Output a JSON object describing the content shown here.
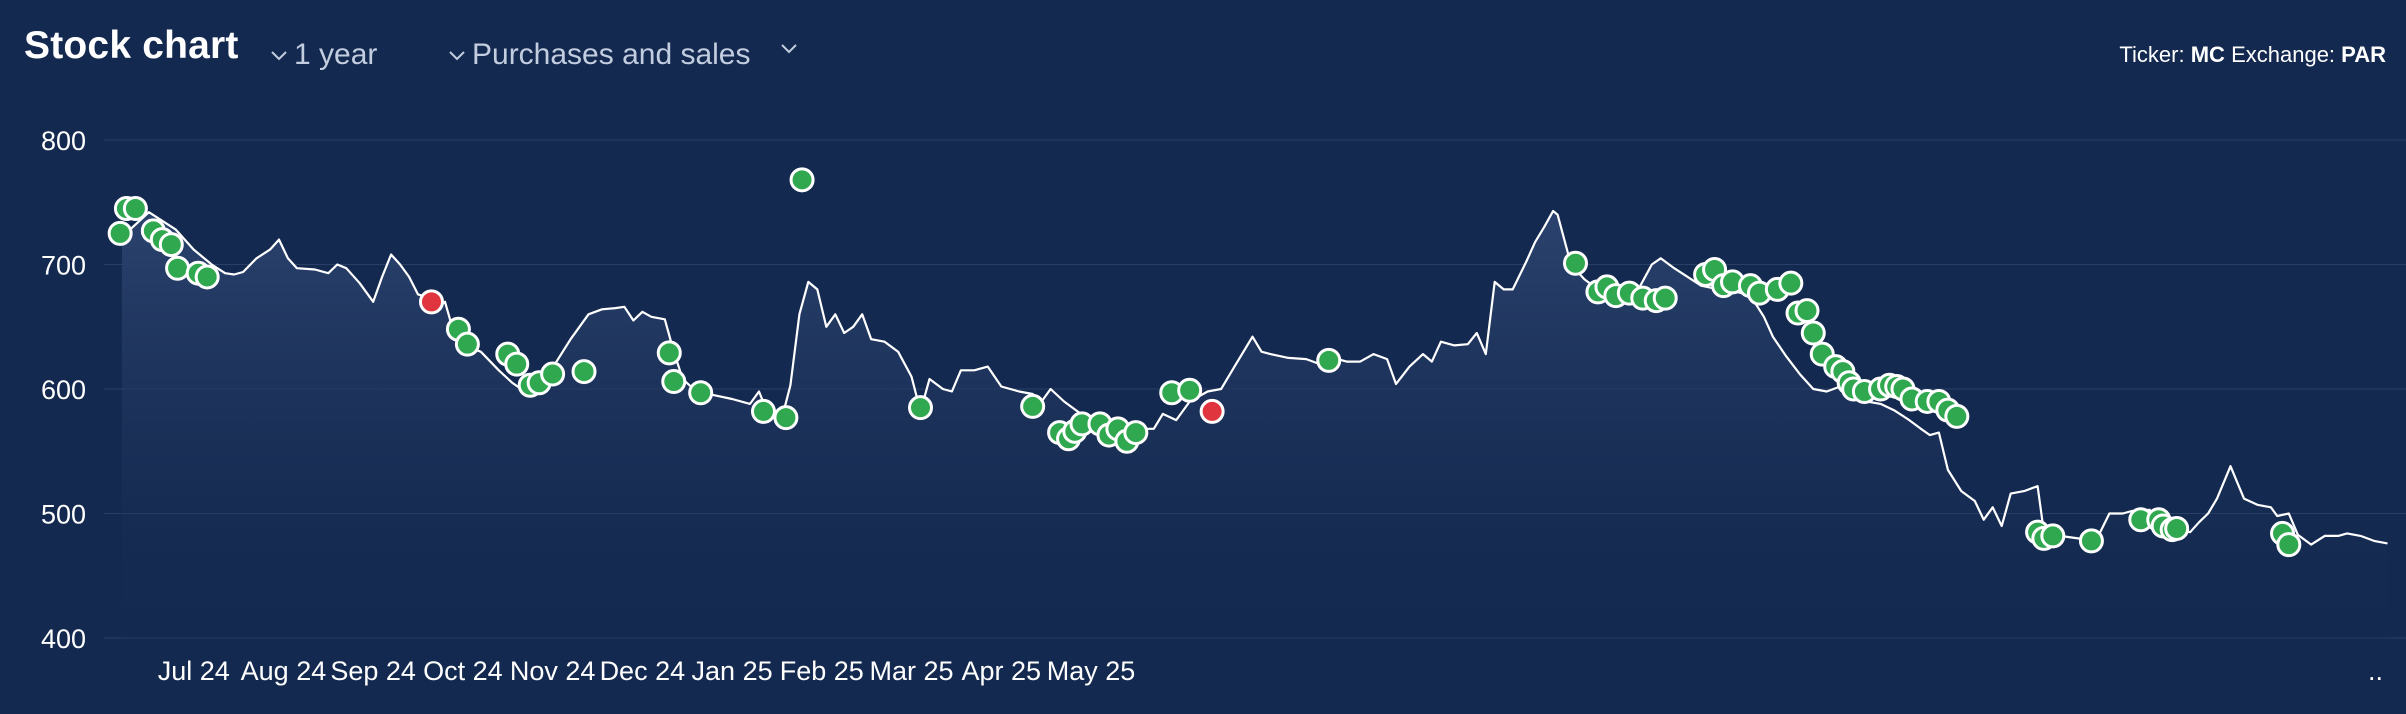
{
  "header": {
    "title": "Stock chart",
    "range_label": "1 year",
    "transactions_label": "Purchases and sales",
    "ticker_label": "Ticker:",
    "ticker_value": "MC",
    "exchange_label": "Exchange:",
    "exchange_value": "PAR"
  },
  "colors": {
    "background": "#14294f",
    "line": "#ffffff",
    "purchase": "#2fa84f",
    "sale": "#e0353f",
    "grid": "#2a3f66"
  },
  "chart_data": {
    "type": "line",
    "title": "",
    "xlabel": "",
    "ylabel": "",
    "ylim": [
      400,
      800
    ],
    "yticks": [
      400,
      500,
      600,
      700,
      800
    ],
    "x_tick_labels": [
      "Jul 24",
      "Aug 24",
      "Sep 24",
      "Oct 24",
      "Nov 24",
      "Dec 24",
      "Jan 25",
      "Feb 25",
      "Mar 25",
      "Apr 25",
      "May 25",
      ".."
    ],
    "grid": true,
    "x_format": "fractional month index (0 = start of Jun 24)",
    "price_series": {
      "name": "",
      "points": [
        [
          0.2,
          722
        ],
        [
          0.5,
          742
        ],
        [
          0.8,
          728
        ],
        [
          1.0,
          712
        ],
        [
          1.2,
          700
        ],
        [
          1.35,
          693
        ],
        [
          1.45,
          692
        ],
        [
          1.55,
          694
        ],
        [
          1.7,
          705
        ],
        [
          1.85,
          712
        ],
        [
          1.95,
          720
        ],
        [
          2.05,
          705
        ],
        [
          2.15,
          697
        ],
        [
          2.35,
          696
        ],
        [
          2.5,
          693
        ],
        [
          2.6,
          700
        ],
        [
          2.7,
          697
        ],
        [
          2.85,
          685
        ],
        [
          3.0,
          670
        ],
        [
          3.1,
          690
        ],
        [
          3.2,
          708
        ],
        [
          3.3,
          700
        ],
        [
          3.4,
          690
        ],
        [
          3.5,
          676
        ],
        [
          3.6,
          674
        ],
        [
          3.7,
          665
        ],
        [
          3.8,
          670
        ],
        [
          3.9,
          645
        ],
        [
          4.0,
          635
        ],
        [
          4.2,
          630
        ],
        [
          4.4,
          615
        ],
        [
          4.55,
          605
        ],
        [
          4.65,
          600
        ],
        [
          4.75,
          610
        ],
        [
          4.85,
          612
        ],
        [
          5.0,
          617
        ],
        [
          5.2,
          640
        ],
        [
          5.4,
          660
        ],
        [
          5.55,
          664
        ],
        [
          5.7,
          665
        ],
        [
          5.8,
          666
        ],
        [
          5.9,
          655
        ],
        [
          6.0,
          662
        ],
        [
          6.1,
          658
        ],
        [
          6.25,
          656
        ],
        [
          6.35,
          630
        ],
        [
          6.45,
          608
        ],
        [
          6.6,
          598
        ],
        [
          6.8,
          595
        ],
        [
          7.0,
          592
        ],
        [
          7.2,
          588
        ],
        [
          7.3,
          598
        ],
        [
          7.4,
          580
        ],
        [
          7.55,
          575
        ],
        [
          7.65,
          603
        ],
        [
          7.75,
          660
        ],
        [
          7.85,
          686
        ],
        [
          7.95,
          680
        ],
        [
          8.05,
          650
        ],
        [
          8.15,
          660
        ],
        [
          8.25,
          645
        ],
        [
          8.35,
          650
        ],
        [
          8.45,
          660
        ],
        [
          8.55,
          640
        ],
        [
          8.7,
          638
        ],
        [
          8.85,
          630
        ],
        [
          9.0,
          610
        ],
        [
          9.1,
          582
        ],
        [
          9.2,
          608
        ],
        [
          9.35,
          600
        ],
        [
          9.45,
          598
        ],
        [
          9.55,
          615
        ],
        [
          9.7,
          615
        ],
        [
          9.85,
          618
        ],
        [
          10.0,
          602
        ],
        [
          10.2,
          598
        ],
        [
          10.35,
          596
        ],
        [
          10.45,
          590
        ],
        [
          10.55,
          600
        ],
        [
          10.7,
          590
        ],
        [
          10.85,
          582
        ],
        [
          11.0,
          575
        ],
        [
          11.2,
          570
        ],
        [
          11.4,
          560
        ],
        [
          11.55,
          568
        ],
        [
          11.7,
          568
        ],
        [
          11.8,
          580
        ],
        [
          11.95,
          575
        ],
        [
          12.1,
          590
        ],
        [
          12.3,
          598
        ],
        [
          12.45,
          600
        ],
        [
          12.6,
          618
        ],
        [
          12.8,
          642
        ],
        [
          12.9,
          630
        ],
        [
          13.0,
          628
        ],
        [
          13.2,
          625
        ],
        [
          13.4,
          624
        ],
        [
          13.55,
          620
        ],
        [
          13.7,
          625
        ],
        [
          13.85,
          622
        ],
        [
          14.0,
          622
        ],
        [
          14.15,
          628
        ],
        [
          14.3,
          624
        ],
        [
          14.4,
          604
        ],
        [
          14.55,
          618
        ],
        [
          14.7,
          628
        ],
        [
          14.8,
          622
        ],
        [
          14.9,
          638
        ],
        [
          15.05,
          635
        ],
        [
          15.2,
          636
        ],
        [
          15.3,
          645
        ],
        [
          15.4,
          628
        ],
        [
          15.5,
          686
        ],
        [
          15.6,
          680
        ],
        [
          15.7,
          680
        ],
        [
          15.85,
          702
        ],
        [
          15.95,
          718
        ],
        [
          16.05,
          730
        ],
        [
          16.15,
          743
        ],
        [
          16.2,
          740
        ],
        [
          16.35,
          700
        ],
        [
          16.5,
          688
        ],
        [
          16.65,
          680
        ],
        [
          16.8,
          678
        ],
        [
          16.95,
          672
        ],
        [
          17.1,
          680
        ],
        [
          17.25,
          700
        ],
        [
          17.35,
          705
        ],
        [
          17.5,
          697
        ],
        [
          17.65,
          690
        ],
        [
          17.8,
          683
        ],
        [
          18.0,
          680
        ],
        [
          18.2,
          678
        ],
        [
          18.35,
          675
        ],
        [
          18.5,
          658
        ],
        [
          18.6,
          642
        ],
        [
          18.75,
          626
        ],
        [
          18.9,
          612
        ],
        [
          19.05,
          600
        ],
        [
          19.2,
          598
        ],
        [
          19.35,
          602
        ],
        [
          19.5,
          597
        ],
        [
          19.65,
          590
        ],
        [
          19.8,
          588
        ],
        [
          19.95,
          583
        ],
        [
          20.1,
          576
        ],
        [
          20.25,
          568
        ],
        [
          20.35,
          563
        ],
        [
          20.45,
          565
        ],
        [
          20.55,
          535
        ],
        [
          20.7,
          518
        ],
        [
          20.85,
          510
        ],
        [
          20.95,
          495
        ],
        [
          21.05,
          505
        ],
        [
          21.15,
          490
        ],
        [
          21.25,
          516
        ],
        [
          21.4,
          518
        ],
        [
          21.55,
          522
        ],
        [
          21.62,
          485
        ],
        [
          21.7,
          480
        ],
        [
          21.8,
          482
        ],
        [
          22.0,
          480
        ],
        [
          22.2,
          478
        ],
        [
          22.35,
          500
        ],
        [
          22.5,
          500
        ],
        [
          22.6,
          502
        ],
        [
          22.8,
          503
        ],
        [
          22.9,
          490
        ],
        [
          23.1,
          488
        ],
        [
          23.25,
          485
        ],
        [
          23.35,
          493
        ],
        [
          23.45,
          500
        ],
        [
          23.55,
          512
        ],
        [
          23.7,
          538
        ],
        [
          23.85,
          512
        ],
        [
          24.0,
          507
        ],
        [
          24.15,
          505
        ],
        [
          24.22,
          498
        ],
        [
          24.35,
          500
        ],
        [
          24.45,
          483
        ],
        [
          24.6,
          475
        ],
        [
          24.75,
          482
        ],
        [
          24.9,
          482
        ],
        [
          25.0,
          484
        ],
        [
          25.15,
          482
        ],
        [
          25.3,
          478
        ],
        [
          25.45,
          476
        ]
      ]
    },
    "purchases": [
      [
        0.18,
        725
      ],
      [
        0.25,
        745
      ],
      [
        0.35,
        745
      ],
      [
        0.55,
        727
      ],
      [
        0.65,
        720
      ],
      [
        0.75,
        716
      ],
      [
        0.82,
        697
      ],
      [
        1.05,
        693
      ],
      [
        1.15,
        690
      ],
      [
        3.95,
        648
      ],
      [
        4.05,
        636
      ],
      [
        4.5,
        628
      ],
      [
        4.6,
        620
      ],
      [
        4.75,
        603
      ],
      [
        4.85,
        605
      ],
      [
        5.0,
        612
      ],
      [
        5.35,
        614
      ],
      [
        6.3,
        629
      ],
      [
        6.35,
        606
      ],
      [
        6.65,
        597
      ],
      [
        7.35,
        582
      ],
      [
        7.6,
        577
      ],
      [
        7.78,
        768
      ],
      [
        9.1,
        585
      ],
      [
        10.35,
        586
      ],
      [
        10.65,
        565
      ],
      [
        10.75,
        560
      ],
      [
        10.82,
        566
      ],
      [
        10.9,
        572
      ],
      [
        11.1,
        572
      ],
      [
        11.2,
        563
      ],
      [
        11.3,
        568
      ],
      [
        11.4,
        558
      ],
      [
        11.5,
        565
      ],
      [
        11.9,
        597
      ],
      [
        12.1,
        599
      ],
      [
        13.65,
        623
      ],
      [
        16.4,
        701
      ],
      [
        16.65,
        678
      ],
      [
        16.75,
        682
      ],
      [
        16.85,
        675
      ],
      [
        17.0,
        677
      ],
      [
        17.15,
        673
      ],
      [
        17.3,
        671
      ],
      [
        17.4,
        673
      ],
      [
        17.85,
        692
      ],
      [
        17.95,
        696
      ],
      [
        18.05,
        683
      ],
      [
        18.15,
        686
      ],
      [
        18.35,
        683
      ],
      [
        18.45,
        677
      ],
      [
        18.65,
        680
      ],
      [
        18.8,
        685
      ],
      [
        18.88,
        661
      ],
      [
        18.98,
        663
      ],
      [
        19.05,
        645
      ],
      [
        19.15,
        628
      ],
      [
        19.3,
        618
      ],
      [
        19.38,
        614
      ],
      [
        19.45,
        605
      ],
      [
        19.5,
        600
      ],
      [
        19.62,
        598
      ],
      [
        19.8,
        600
      ],
      [
        19.9,
        603
      ],
      [
        19.98,
        602
      ],
      [
        20.05,
        600
      ],
      [
        20.15,
        592
      ],
      [
        20.32,
        590
      ],
      [
        20.45,
        590
      ],
      [
        20.55,
        583
      ],
      [
        20.65,
        578
      ],
      [
        21.55,
        485
      ],
      [
        21.62,
        480
      ],
      [
        21.72,
        482
      ],
      [
        22.15,
        478
      ],
      [
        22.7,
        495
      ],
      [
        22.9,
        495
      ],
      [
        22.95,
        490
      ],
      [
        23.05,
        487
      ],
      [
        23.1,
        488
      ],
      [
        24.28,
        484
      ],
      [
        24.35,
        475
      ]
    ],
    "sales": [
      [
        3.65,
        670
      ],
      [
        12.35,
        582
      ]
    ]
  }
}
